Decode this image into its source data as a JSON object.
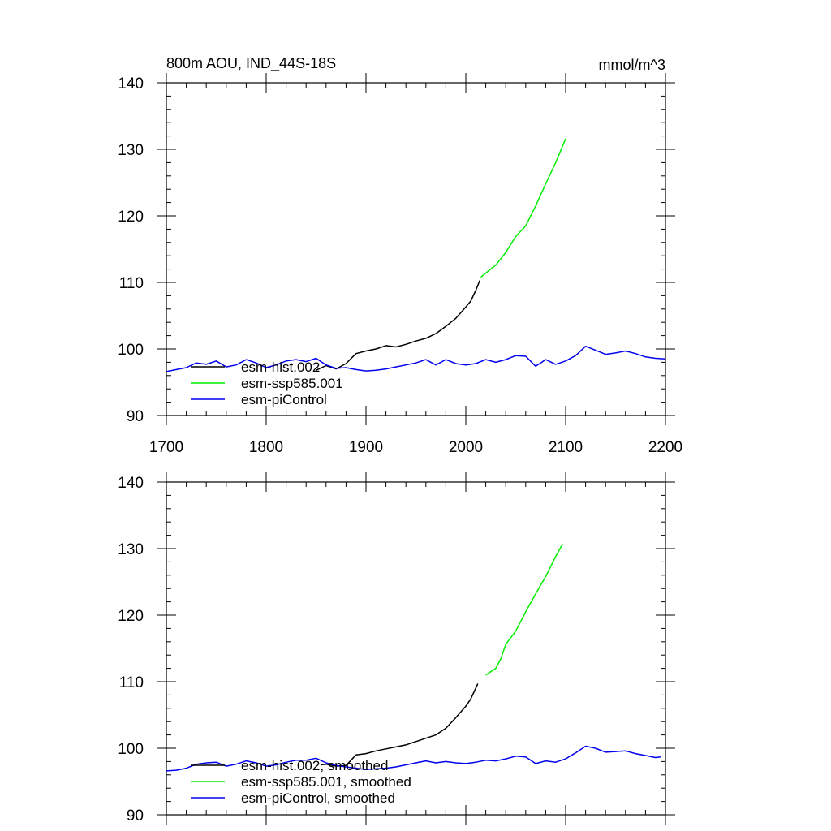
{
  "chart_data": [
    {
      "type": "line",
      "title": "800m AOU, IND_44S-18S",
      "units": "mmol/m^3",
      "xlim": [
        1700,
        2200
      ],
      "ylim": [
        90,
        140
      ],
      "x_ticks": [
        1700,
        1800,
        1900,
        2000,
        2100,
        2200
      ],
      "x_tick_labels": [
        "1700",
        "1800",
        "1900",
        "2000",
        "2100",
        "2200"
      ],
      "y_ticks": [
        90,
        100,
        110,
        120,
        130,
        140
      ],
      "y_tick_labels": [
        "90",
        "100",
        "110",
        "120",
        "130",
        "140"
      ],
      "legend_position": "bottom-left",
      "series": [
        {
          "name": "esm-hist.002",
          "color": "#000000",
          "x": [
            1850,
            1860,
            1870,
            1880,
            1890,
            1900,
            1910,
            1920,
            1930,
            1940,
            1950,
            1960,
            1970,
            1980,
            1990,
            2000,
            2005,
            2010,
            2014
          ],
          "values": [
            96.8,
            97.5,
            97.0,
            97.8,
            99.3,
            99.7,
            100.0,
            100.5,
            100.3,
            100.7,
            101.2,
            101.6,
            102.3,
            103.4,
            104.6,
            106.3,
            107.2,
            108.8,
            110.3
          ]
        },
        {
          "name": "esm-ssp585.001",
          "color": "#00ee00",
          "x": [
            2015,
            2020,
            2030,
            2040,
            2050,
            2060,
            2070,
            2080,
            2090,
            2100
          ],
          "values": [
            110.8,
            111.4,
            112.6,
            114.5,
            116.9,
            118.5,
            121.5,
            124.8,
            128.0,
            131.6
          ]
        },
        {
          "name": "esm-piControl",
          "color": "#0000ee",
          "x": [
            1700,
            1710,
            1720,
            1730,
            1740,
            1750,
            1760,
            1770,
            1780,
            1790,
            1800,
            1810,
            1820,
            1830,
            1840,
            1850,
            1860,
            1870,
            1880,
            1890,
            1900,
            1910,
            1920,
            1930,
            1940,
            1950,
            1960,
            1970,
            1980,
            1990,
            2000,
            2010,
            2020,
            2030,
            2040,
            2050,
            2060,
            2070,
            2080,
            2090,
            2100,
            2110,
            2120,
            2130,
            2140,
            2150,
            2160,
            2170,
            2180,
            2190,
            2200
          ],
          "values": [
            96.6,
            96.9,
            97.2,
            97.9,
            97.7,
            98.2,
            97.3,
            97.6,
            98.4,
            97.9,
            97.2,
            97.6,
            98.2,
            98.4,
            98.1,
            98.6,
            97.6,
            97.1,
            97.2,
            96.9,
            96.7,
            96.8,
            97.0,
            97.3,
            97.6,
            97.9,
            98.4,
            97.6,
            98.4,
            97.8,
            97.6,
            97.8,
            98.4,
            98.0,
            98.4,
            99.0,
            98.9,
            97.4,
            98.4,
            97.7,
            98.2,
            99.0,
            100.4,
            99.8,
            99.2,
            99.4,
            99.7,
            99.3,
            98.8,
            98.6,
            98.5
          ]
        }
      ]
    },
    {
      "type": "line",
      "title": "",
      "units": "",
      "xlim": [
        1700,
        2200
      ],
      "ylim": [
        90,
        140
      ],
      "y_ticks": [
        90,
        100,
        110,
        120,
        130,
        140
      ],
      "y_tick_labels": [
        "90",
        "100",
        "110",
        "120",
        "130",
        "140"
      ],
      "legend_position": "bottom-left",
      "series": [
        {
          "name": "esm-hist.002, smoothed",
          "color": "#000000",
          "x": [
            1855,
            1860,
            1870,
            1880,
            1890,
            1900,
            1910,
            1920,
            1930,
            1940,
            1950,
            1960,
            1970,
            1980,
            1990,
            2000,
            2005,
            2012
          ],
          "values": [
            97.5,
            97.6,
            97.3,
            97.4,
            99.0,
            99.2,
            99.6,
            99.9,
            100.2,
            100.5,
            101.0,
            101.5,
            102.0,
            103.0,
            104.6,
            106.3,
            107.4,
            109.7
          ]
        },
        {
          "name": "esm-ssp585.001, smoothed",
          "color": "#00ee00",
          "x": [
            2020,
            2030,
            2035,
            2040,
            2050,
            2060,
            2070,
            2080,
            2090,
            2097
          ],
          "values": [
            111.0,
            112.0,
            113.4,
            115.6,
            117.6,
            120.5,
            123.2,
            125.8,
            128.8,
            130.7
          ]
        },
        {
          "name": "esm-piControl, smoothed",
          "color": "#0000ee",
          "x": [
            1700,
            1710,
            1720,
            1730,
            1740,
            1750,
            1760,
            1770,
            1780,
            1790,
            1800,
            1810,
            1820,
            1830,
            1840,
            1850,
            1860,
            1870,
            1880,
            1890,
            1900,
            1910,
            1920,
            1930,
            1940,
            1950,
            1960,
            1970,
            1980,
            1990,
            2000,
            2010,
            2020,
            2030,
            2040,
            2050,
            2060,
            2070,
            2080,
            2090,
            2100,
            2110,
            2120,
            2130,
            2140,
            2150,
            2160,
            2170,
            2180,
            2190,
            2195
          ],
          "values": [
            96.6,
            96.7,
            97.0,
            97.6,
            97.8,
            97.9,
            97.3,
            97.6,
            98.1,
            97.8,
            97.3,
            97.5,
            97.9,
            98.2,
            98.2,
            98.5,
            97.8,
            97.4,
            97.2,
            97.0,
            96.8,
            96.9,
            97.0,
            97.2,
            97.5,
            97.8,
            98.1,
            97.8,
            98.0,
            97.8,
            97.7,
            97.9,
            98.2,
            98.1,
            98.4,
            98.8,
            98.7,
            97.7,
            98.1,
            97.9,
            98.4,
            99.3,
            100.3,
            100.0,
            99.4,
            99.5,
            99.6,
            99.2,
            98.9,
            98.6,
            98.7
          ]
        }
      ]
    }
  ]
}
